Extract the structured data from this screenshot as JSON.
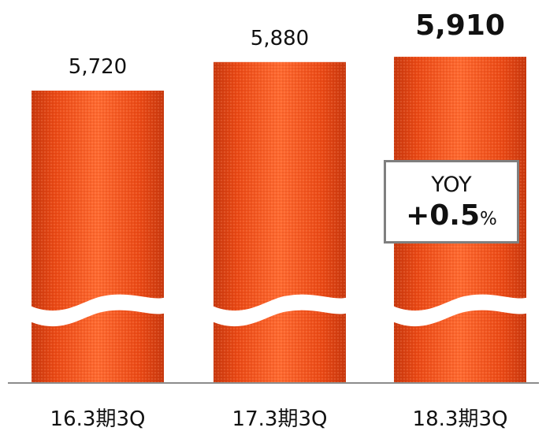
{
  "chart_data": {
    "type": "bar",
    "categories": [
      "16.3期3Q",
      "17.3期3Q",
      "18.3期3Q"
    ],
    "values": [
      5720,
      5880,
      5910
    ],
    "value_labels": [
      "5,720",
      "5,880",
      "5,910"
    ],
    "highlight_index": 2,
    "axis_break": true,
    "grid": false,
    "title": "",
    "xlabel": "",
    "ylabel": ""
  },
  "yoy": {
    "title": "YOY",
    "value": "+0.5",
    "unit": "%"
  },
  "colors": {
    "bar": "#f24d17",
    "bar_dark": "#c93a10",
    "bar_light": "#ff7a45",
    "baseline": "#8c8c8c",
    "box_border": "#7f7f7f",
    "text": "#111111"
  }
}
